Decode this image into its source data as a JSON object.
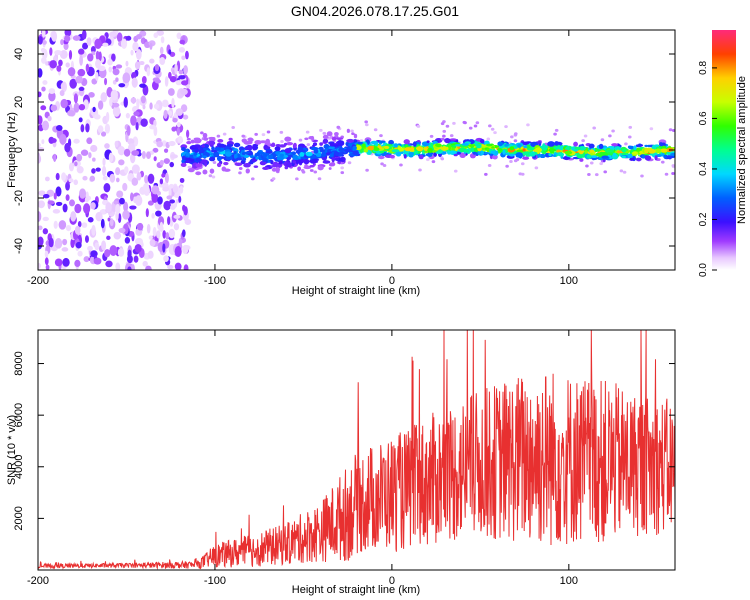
{
  "title": "GN04.2026.078.17.25.G01",
  "colors": {
    "trace": "#e83030",
    "axis": "#000000",
    "background": "#ffffff"
  },
  "chart_data": [
    {
      "type": "heatmap",
      "xlabel": "Height of straight line (km)",
      "ylabel": "Frequency (Hz)",
      "xlim": [
        -200,
        160
      ],
      "ylim": [
        -50,
        50
      ],
      "xticks": [
        -200,
        -100,
        0,
        100
      ],
      "yticks": [
        -40,
        -20,
        0,
        20,
        40
      ],
      "colorbar": {
        "label": "Normalized spectral amplitude",
        "range": [
          0,
          0.95
        ],
        "ticks": [
          "0.0",
          "0.2",
          "0.4",
          "0.6",
          "0.8"
        ]
      },
      "ridge": [
        {
          "x": -110,
          "f": -2
        },
        {
          "x": -90,
          "f": -1
        },
        {
          "x": -70,
          "f": -3
        },
        {
          "x": -50,
          "f": -2
        },
        {
          "x": -30,
          "f": 0
        },
        {
          "x": -10,
          "f": 1
        },
        {
          "x": 10,
          "f": 0
        },
        {
          "x": 30,
          "f": 1
        },
        {
          "x": 50,
          "f": 1
        },
        {
          "x": 70,
          "f": 0
        },
        {
          "x": 90,
          "f": 0
        },
        {
          "x": 110,
          "f": -1
        },
        {
          "x": 130,
          "f": -1
        },
        {
          "x": 160,
          "f": 0
        }
      ],
      "ridge_peak_amplitude": 0.9,
      "noise_region_x": [
        -200,
        -115
      ]
    },
    {
      "type": "line",
      "xlabel": "Height of straight line (km)",
      "ylabel": "SNR (10 * v/v)",
      "xlim": [
        -200,
        160
      ],
      "ylim": [
        0,
        9300
      ],
      "xticks": [
        -200,
        -100,
        0,
        100
      ],
      "yticks": [
        2000,
        4000,
        6000,
        8000
      ],
      "envelope": {
        "x": [
          -200,
          -150,
          -110,
          -100,
          -80,
          -60,
          -40,
          -25,
          -20,
          -5,
          10,
          30,
          50,
          70,
          85,
          100,
          120,
          140,
          160
        ],
        "mean": [
          150,
          180,
          200,
          550,
          750,
          1000,
          1500,
          2200,
          2600,
          2900,
          3100,
          3700,
          4100,
          4300,
          4400,
          4300,
          4200,
          4100,
          4000
        ],
        "amp": [
          80,
          90,
          150,
          450,
          650,
          800,
          1200,
          1900,
          2000,
          2200,
          2400,
          2700,
          2900,
          3300,
          3600,
          3400,
          3200,
          2800,
          2600
        ]
      },
      "peak_max": 9300
    }
  ]
}
